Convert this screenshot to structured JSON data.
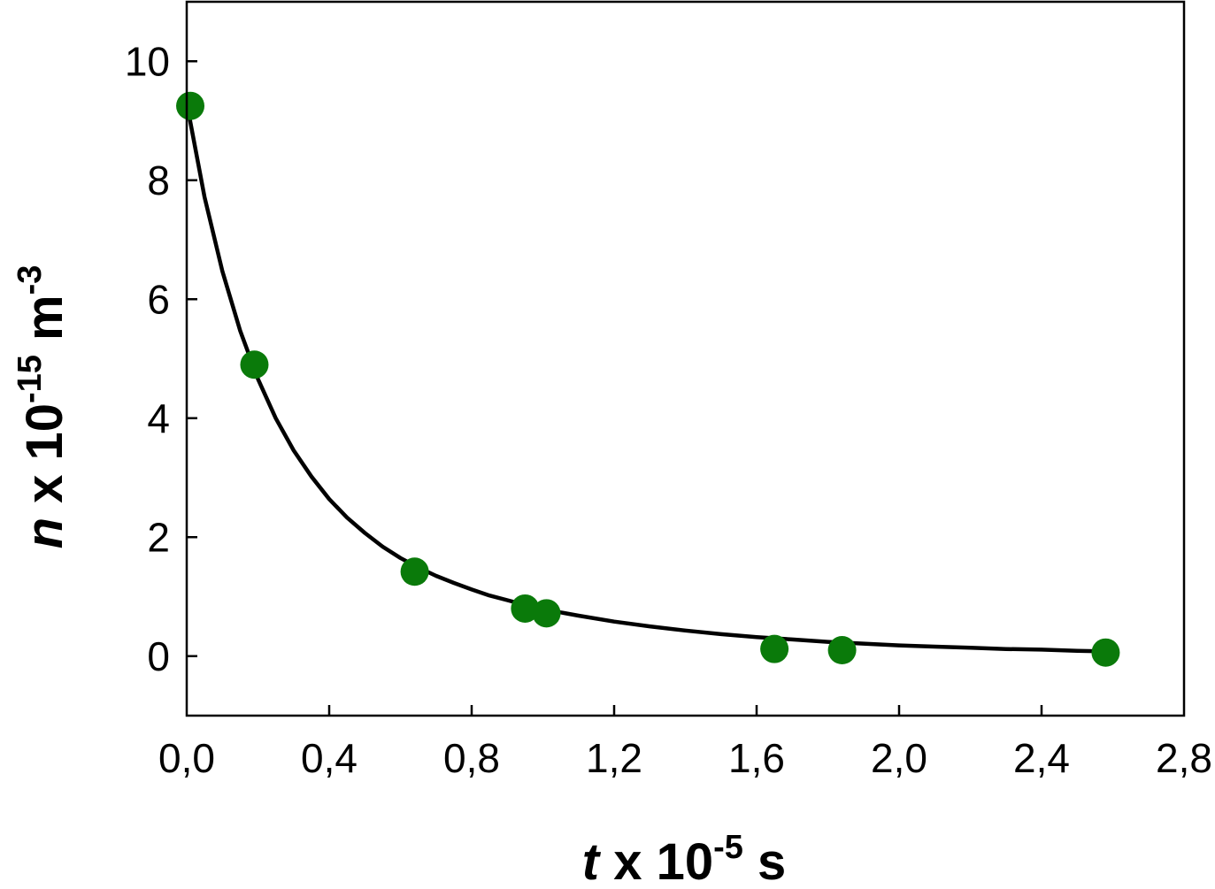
{
  "chart_data": {
    "type": "scatter",
    "title": "",
    "xlabel": {
      "var": "t",
      "mid": " x 10",
      "sup": "-5",
      "unit": " s"
    },
    "ylabel": {
      "var": "n",
      "mid": " x 10",
      "sup": "-15",
      "unit": " m",
      "unit_sup": "-3"
    },
    "xlim": [
      0.0,
      2.8
    ],
    "ylim": [
      -1.0,
      11.0
    ],
    "x_ticks": [
      0.0,
      0.4,
      0.8,
      1.2,
      1.6,
      2.0,
      2.4,
      2.8
    ],
    "x_tick_labels": [
      "0,0",
      "0,4",
      "0,8",
      "1,2",
      "1,6",
      "2,0",
      "2,4",
      "2,8"
    ],
    "y_ticks": [
      0,
      2,
      4,
      6,
      8,
      10
    ],
    "y_tick_labels": [
      "0",
      "2",
      "4",
      "6",
      "8",
      "10"
    ],
    "grid": false,
    "series": [
      {
        "kind": "points",
        "color": "#0a7a0a",
        "x": [
          0.01,
          0.19,
          0.64,
          0.95,
          1.01,
          1.65,
          1.84,
          2.58
        ],
        "y": [
          9.25,
          4.9,
          1.42,
          0.8,
          0.72,
          0.12,
          0.1,
          0.06
        ]
      },
      {
        "kind": "fit-line",
        "color": "#000000",
        "x": [
          0.0,
          0.05,
          0.1,
          0.15,
          0.2,
          0.25,
          0.3,
          0.35,
          0.4,
          0.45,
          0.5,
          0.55,
          0.6,
          0.65,
          0.7,
          0.75,
          0.8,
          0.85,
          0.9,
          0.95,
          1.0,
          1.1,
          1.2,
          1.3,
          1.4,
          1.5,
          1.6,
          1.7,
          1.8,
          1.9,
          2.0,
          2.1,
          2.2,
          2.3,
          2.4,
          2.5,
          2.58
        ],
        "y": [
          9.3,
          7.72,
          6.47,
          5.47,
          4.66,
          4.0,
          3.46,
          3.02,
          2.64,
          2.33,
          2.07,
          1.84,
          1.65,
          1.49,
          1.35,
          1.23,
          1.12,
          1.02,
          0.94,
          0.86,
          0.79,
          0.68,
          0.58,
          0.5,
          0.43,
          0.37,
          0.32,
          0.28,
          0.24,
          0.21,
          0.18,
          0.16,
          0.14,
          0.12,
          0.11,
          0.09,
          0.08
        ]
      }
    ]
  }
}
